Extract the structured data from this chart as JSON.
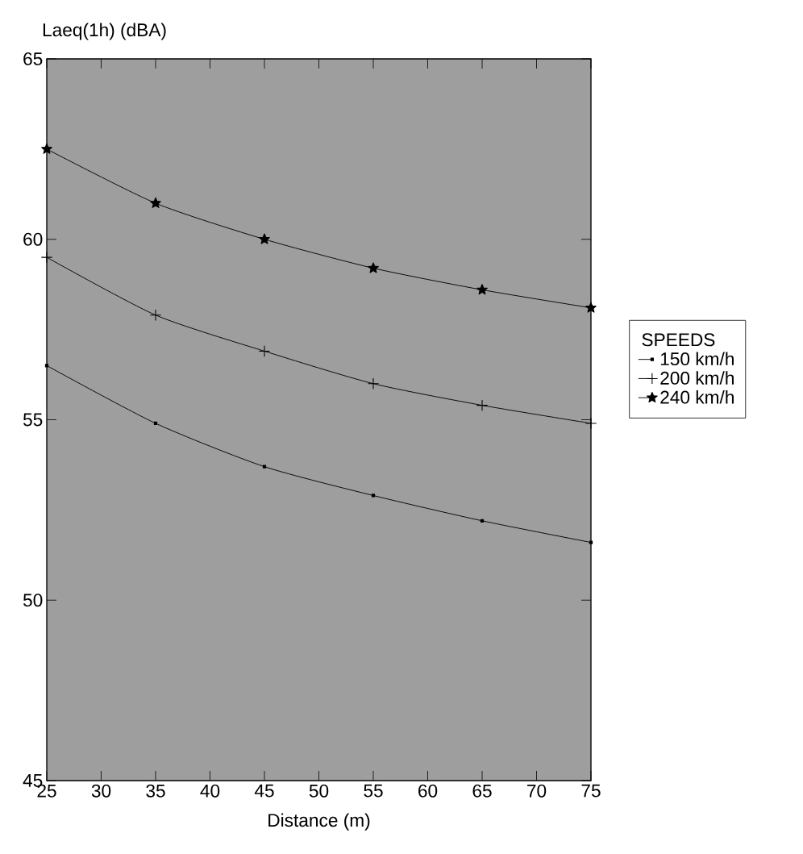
{
  "chart_data": {
    "type": "line",
    "ylabel": "Laeq(1h) (dBA)",
    "xlabel": "Distance (m)",
    "legend_title": "SPEEDS",
    "legend": "right",
    "grid": false,
    "line_style": "solid",
    "x": [
      25,
      35,
      45,
      55,
      65,
      75
    ],
    "xlim": [
      25,
      75
    ],
    "xticks": [
      25,
      30,
      35,
      40,
      45,
      50,
      55,
      60,
      65,
      70,
      75
    ],
    "ylim": [
      45,
      65
    ],
    "yticks": [
      45,
      50,
      55,
      60,
      65
    ],
    "series": [
      {
        "name": "150 km/h",
        "color": "#000000",
        "marker": "square",
        "values": [
          56.5,
          54.9,
          53.7,
          52.9,
          52.2,
          51.6
        ]
      },
      {
        "name": "200 km/h",
        "color": "#000000",
        "marker": "cross",
        "values": [
          59.5,
          57.9,
          56.9,
          56.0,
          55.4,
          54.9
        ]
      },
      {
        "name": "240 km/h",
        "color": "#000000",
        "marker": "star",
        "values": [
          62.5,
          61.0,
          60.0,
          59.2,
          58.6,
          58.1
        ]
      }
    ]
  }
}
